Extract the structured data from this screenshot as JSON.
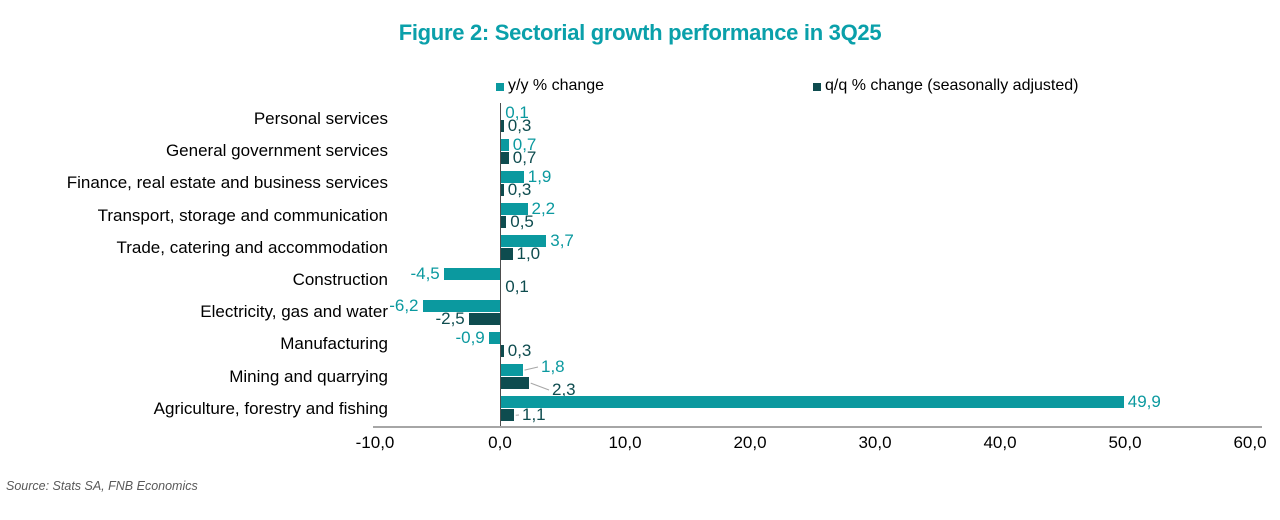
{
  "chart_data": {
    "type": "bar",
    "orientation": "horizontal",
    "title": "Figure 2: Sectorial growth performance in 3Q25",
    "title_color": "#0aa0aa",
    "source": "Source: Stats SA, FNB Economics",
    "categories": [
      "Personal services",
      "General government services",
      "Finance, real estate and business services",
      "Transport, storage and communication",
      "Trade, catering and accommodation",
      "Construction",
      "Electricity, gas and water",
      "Manufacturing",
      "Mining and quarrying",
      "Agriculture, forestry and fishing"
    ],
    "series": [
      {
        "name": "y/y % change",
        "color": "#0b999f",
        "values": [
          0.1,
          0.7,
          1.9,
          2.2,
          3.7,
          -4.5,
          -6.2,
          -0.9,
          1.8,
          49.9
        ],
        "labels": [
          "0,1",
          "0,7",
          "1,9",
          "2,2",
          "3,7",
          "-4,5",
          "-6,2",
          "-0,9",
          "1,8",
          "49,9"
        ]
      },
      {
        "name": "q/q % change (seasonally adjusted)",
        "color": "#0e4c4f",
        "values": [
          0.3,
          0.7,
          0.3,
          0.5,
          1.0,
          0.1,
          -2.5,
          0.3,
          2.3,
          1.1
        ],
        "labels": [
          "0,3",
          "0,7",
          "0,3",
          "0,5",
          "1,0",
          "0,1",
          "-2,5",
          "0,3",
          "2,3",
          "1,1"
        ]
      }
    ],
    "x_axis": {
      "min": -10,
      "max": 60,
      "ticks": [
        "-10,0",
        "0,0",
        "10,0",
        "20,0",
        "30,0",
        "40,0",
        "50,0",
        "60,0"
      ]
    },
    "legend_position": "top",
    "grid": false,
    "axis_line_color": "#a6a6a6",
    "leader_line_color": "#a6a6a6"
  }
}
